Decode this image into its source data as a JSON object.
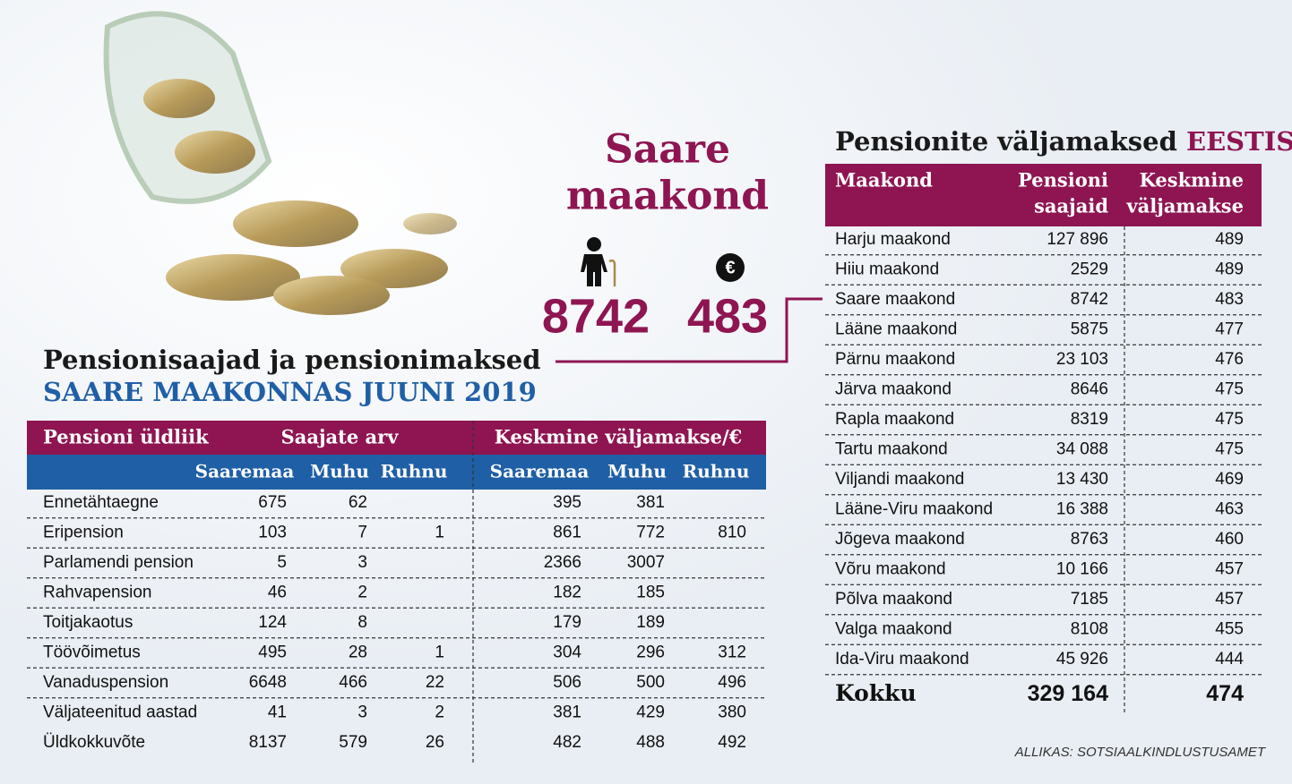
{
  "center": {
    "title_line1": "Saare",
    "title_line2": "maakond",
    "recipients": "8742",
    "average": "483",
    "euro_sign": "€"
  },
  "left_table": {
    "title_line1": "Pensionisaajad ja pensionimaksed",
    "title_line2": "SAARE MAAKONNAS JUUNI 2019",
    "group_headers": [
      "Pensioni üldliik",
      "Saajate arv",
      "Keskmine väljamakse/€"
    ],
    "sub_headers": [
      "Saaremaa",
      "Muhu",
      "Ruhnu",
      "Saaremaa",
      "Muhu",
      "Ruhnu"
    ],
    "rows": [
      [
        "Ennetähtaegne",
        "675",
        "62",
        null,
        "395",
        "381",
        null
      ],
      [
        "Eripension",
        "103",
        "7",
        "1",
        "861",
        "772",
        "810"
      ],
      [
        "Parlamendi pension",
        "5",
        "3",
        null,
        "2366",
        "3007",
        null
      ],
      [
        "Rahvapension",
        "46",
        "2",
        null,
        "182",
        "185",
        null
      ],
      [
        "Toitjakaotus",
        "124",
        "8",
        null,
        "179",
        "189",
        null
      ],
      [
        "Töövõimetus",
        "495",
        "28",
        "1",
        "304",
        "296",
        "312"
      ],
      [
        "Vanaduspension",
        "6648",
        "466",
        "22",
        "506",
        "500",
        "496"
      ],
      [
        "Väljateenitud aastad",
        "41",
        "3",
        "2",
        "381",
        "429",
        "380"
      ],
      [
        "Üldkokkuvõte",
        "8137",
        "579",
        "26",
        "482",
        "488",
        "492"
      ]
    ]
  },
  "right_table": {
    "title": "Pensionite väljamaksed",
    "title_highlight": "EESTIS",
    "headers": {
      "county": "Maakond",
      "recipients_line1": "Pensioni",
      "recipients_line2": "saajaid",
      "average_line1": "Keskmine",
      "average_line2": "väljamakse"
    },
    "rows": [
      [
        "Harju maakond",
        "127 896",
        "489"
      ],
      [
        "Hiiu maakond",
        "2529",
        "489"
      ],
      [
        "Saare maakond",
        "8742",
        "483"
      ],
      [
        "Lääne maakond",
        "5875",
        "477"
      ],
      [
        "Pärnu maakond",
        "23 103",
        "476"
      ],
      [
        "Järva maakond",
        "8646",
        "475"
      ],
      [
        "Rapla maakond",
        "8319",
        "475"
      ],
      [
        "Tartu maakond",
        "34 088",
        "475"
      ],
      [
        "Viljandi maakond",
        "13 430",
        "469"
      ],
      [
        "Lääne-Viru maakond",
        "16 388",
        "463"
      ],
      [
        "Jõgeva maakond",
        "8763",
        "460"
      ],
      [
        "Võru maakond",
        "10 166",
        "457"
      ],
      [
        "Põlva maakond",
        "7185",
        "457"
      ],
      [
        "Valga maakond",
        "8108",
        "455"
      ],
      [
        "Ida-Viru maakond",
        "45 926",
        "444"
      ]
    ],
    "total": [
      "Kokku",
      "329 164",
      "474"
    ]
  },
  "source": "ALLIKAS: SOTSIAALKINDLUSTUSAMET"
}
